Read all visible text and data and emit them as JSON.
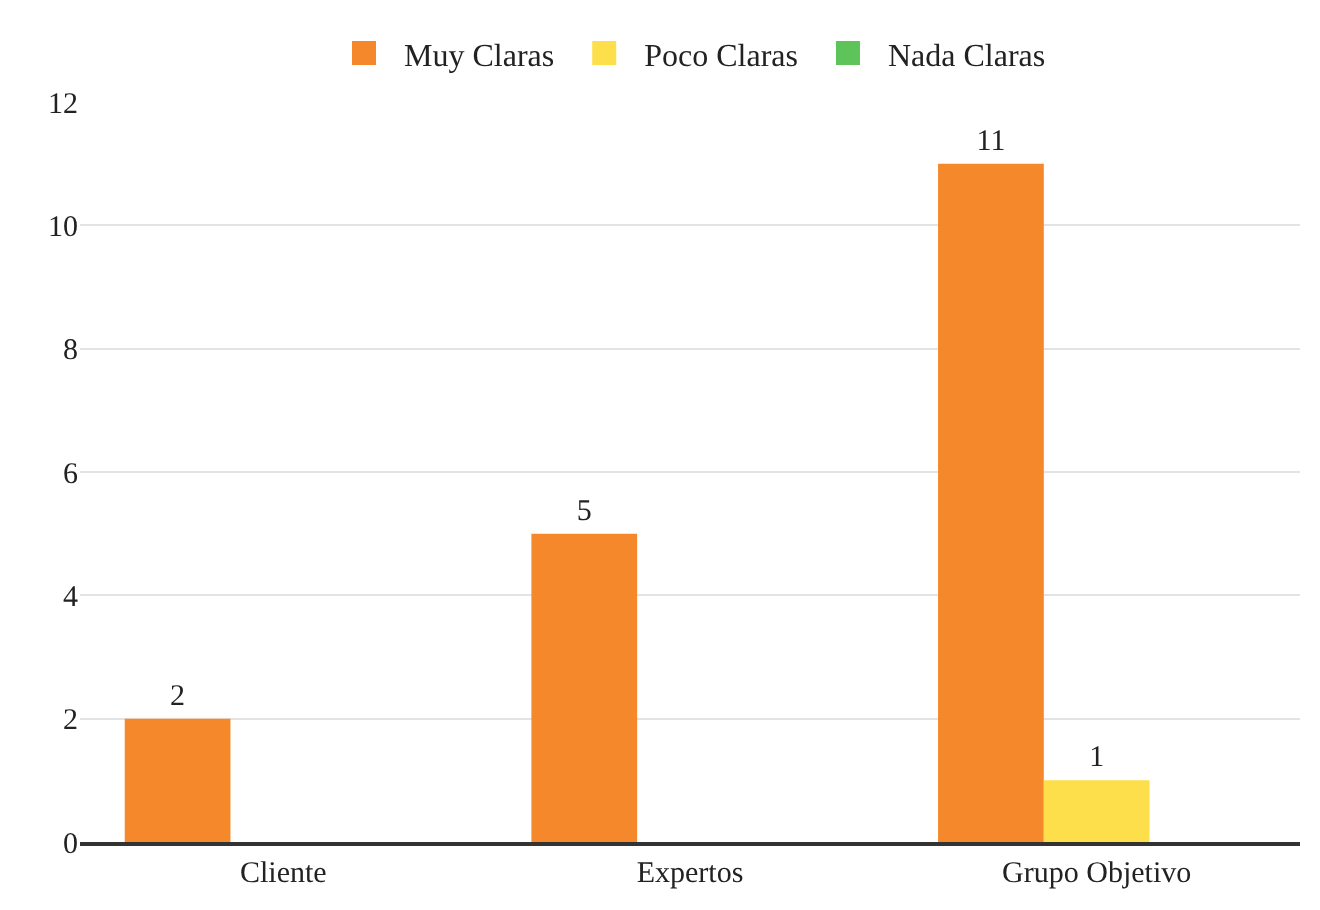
{
  "chart_data": {
    "type": "bar",
    "categories": [
      "Cliente",
      "Expertos",
      "Grupo Objetivo"
    ],
    "series": [
      {
        "name": "Muy Claras",
        "color": "#f5882a",
        "values": [
          2,
          5,
          11
        ]
      },
      {
        "name": "Poco Claras",
        "color": "#fddf4b",
        "values": [
          null,
          null,
          1
        ]
      },
      {
        "name": "Nada Claras",
        "color": "#5ec45a",
        "values": [
          null,
          null,
          null
        ]
      }
    ],
    "ylim": [
      0,
      12
    ],
    "yticks": [
      0,
      2,
      4,
      6,
      8,
      10,
      12
    ],
    "grid": "y",
    "legend": "top",
    "data_labels": true
  }
}
